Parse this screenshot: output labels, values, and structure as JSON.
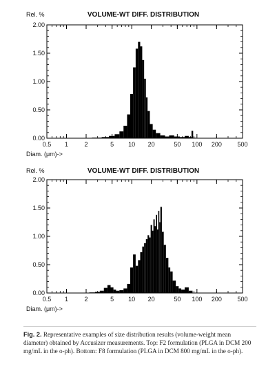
{
  "chart_data": [
    {
      "type": "bar",
      "title": "VOLUME-WT DIFF. DISTRIBUTION",
      "ylabel": "Rel. %",
      "xlabel": "Diam. (μm)->",
      "xscale": "log",
      "xlim": [
        0.5,
        500
      ],
      "ylim": [
        0,
        2.0
      ],
      "xticks": [
        "0.5",
        "1",
        "2",
        "5",
        "10",
        "20",
        "50",
        "100",
        "200",
        "500"
      ],
      "yticks": [
        "0.00",
        "0.50",
        "1.00",
        "1.50",
        "2.00"
      ],
      "x": [
        2,
        3,
        4,
        5,
        6,
        7,
        8,
        9,
        10,
        11,
        12,
        13,
        14,
        15,
        16,
        17,
        18,
        20,
        22,
        25,
        30,
        35,
        40,
        50,
        60,
        70,
        80,
        85,
        90,
        100
      ],
      "values": [
        0.005,
        0.01,
        0.02,
        0.04,
        0.07,
        0.12,
        0.22,
        0.42,
        0.78,
        1.25,
        1.58,
        1.7,
        1.62,
        1.38,
        1.05,
        0.72,
        0.48,
        0.25,
        0.15,
        0.09,
        0.05,
        0.03,
        0.05,
        0.03,
        0.02,
        0.04,
        0.02,
        0.13,
        0.01,
        0.005
      ]
    },
    {
      "type": "bar",
      "title": "VOLUME-WT DIFF. DISTRIBUTION",
      "ylabel": "Rel. %",
      "xlabel": "Diam. (μm)->",
      "xscale": "log",
      "xlim": [
        0.5,
        500
      ],
      "ylim": [
        0,
        2.0
      ],
      "xticks": [
        "0.5",
        "1",
        "2",
        "5",
        "10",
        "20",
        "50",
        "100",
        "200",
        "500"
      ],
      "yticks": [
        "0.00",
        "0.50",
        "1.00",
        "1.50",
        "2.00"
      ],
      "x": [
        2,
        2.5,
        3,
        3.5,
        4,
        4.5,
        5,
        5.5,
        6,
        7,
        8,
        9,
        10,
        11,
        12,
        13,
        14,
        15,
        16,
        17,
        18,
        19,
        20,
        21,
        22,
        23,
        24,
        25,
        26,
        27,
        28,
        30,
        32,
        35,
        38,
        40,
        45,
        50,
        55,
        60,
        70,
        80
      ],
      "values": [
        0.005,
        0.01,
        0.02,
        0.04,
        0.09,
        0.14,
        0.1,
        0.06,
        0.04,
        0.05,
        0.08,
        0.16,
        0.45,
        0.68,
        0.48,
        0.58,
        0.72,
        0.82,
        0.88,
        0.95,
        1.02,
        0.98,
        1.2,
        1.1,
        1.3,
        1.18,
        1.38,
        1.12,
        1.45,
        1.25,
        1.52,
        1.08,
        0.85,
        0.62,
        0.45,
        0.38,
        0.22,
        0.12,
        0.08,
        0.06,
        0.1,
        0.04
      ]
    }
  ],
  "caption": {
    "label": "Fig. 2.",
    "text": "Representative examples of size distribution results (volume-weight mean diameter) obtained by Accusizer measurements. Top: F2 formulation (PLGA in DCM 200 mg/mL in the o-ph). Bottom: F8 formulation (PLGA in DCM 800 mg/mL in the o-ph)."
  }
}
